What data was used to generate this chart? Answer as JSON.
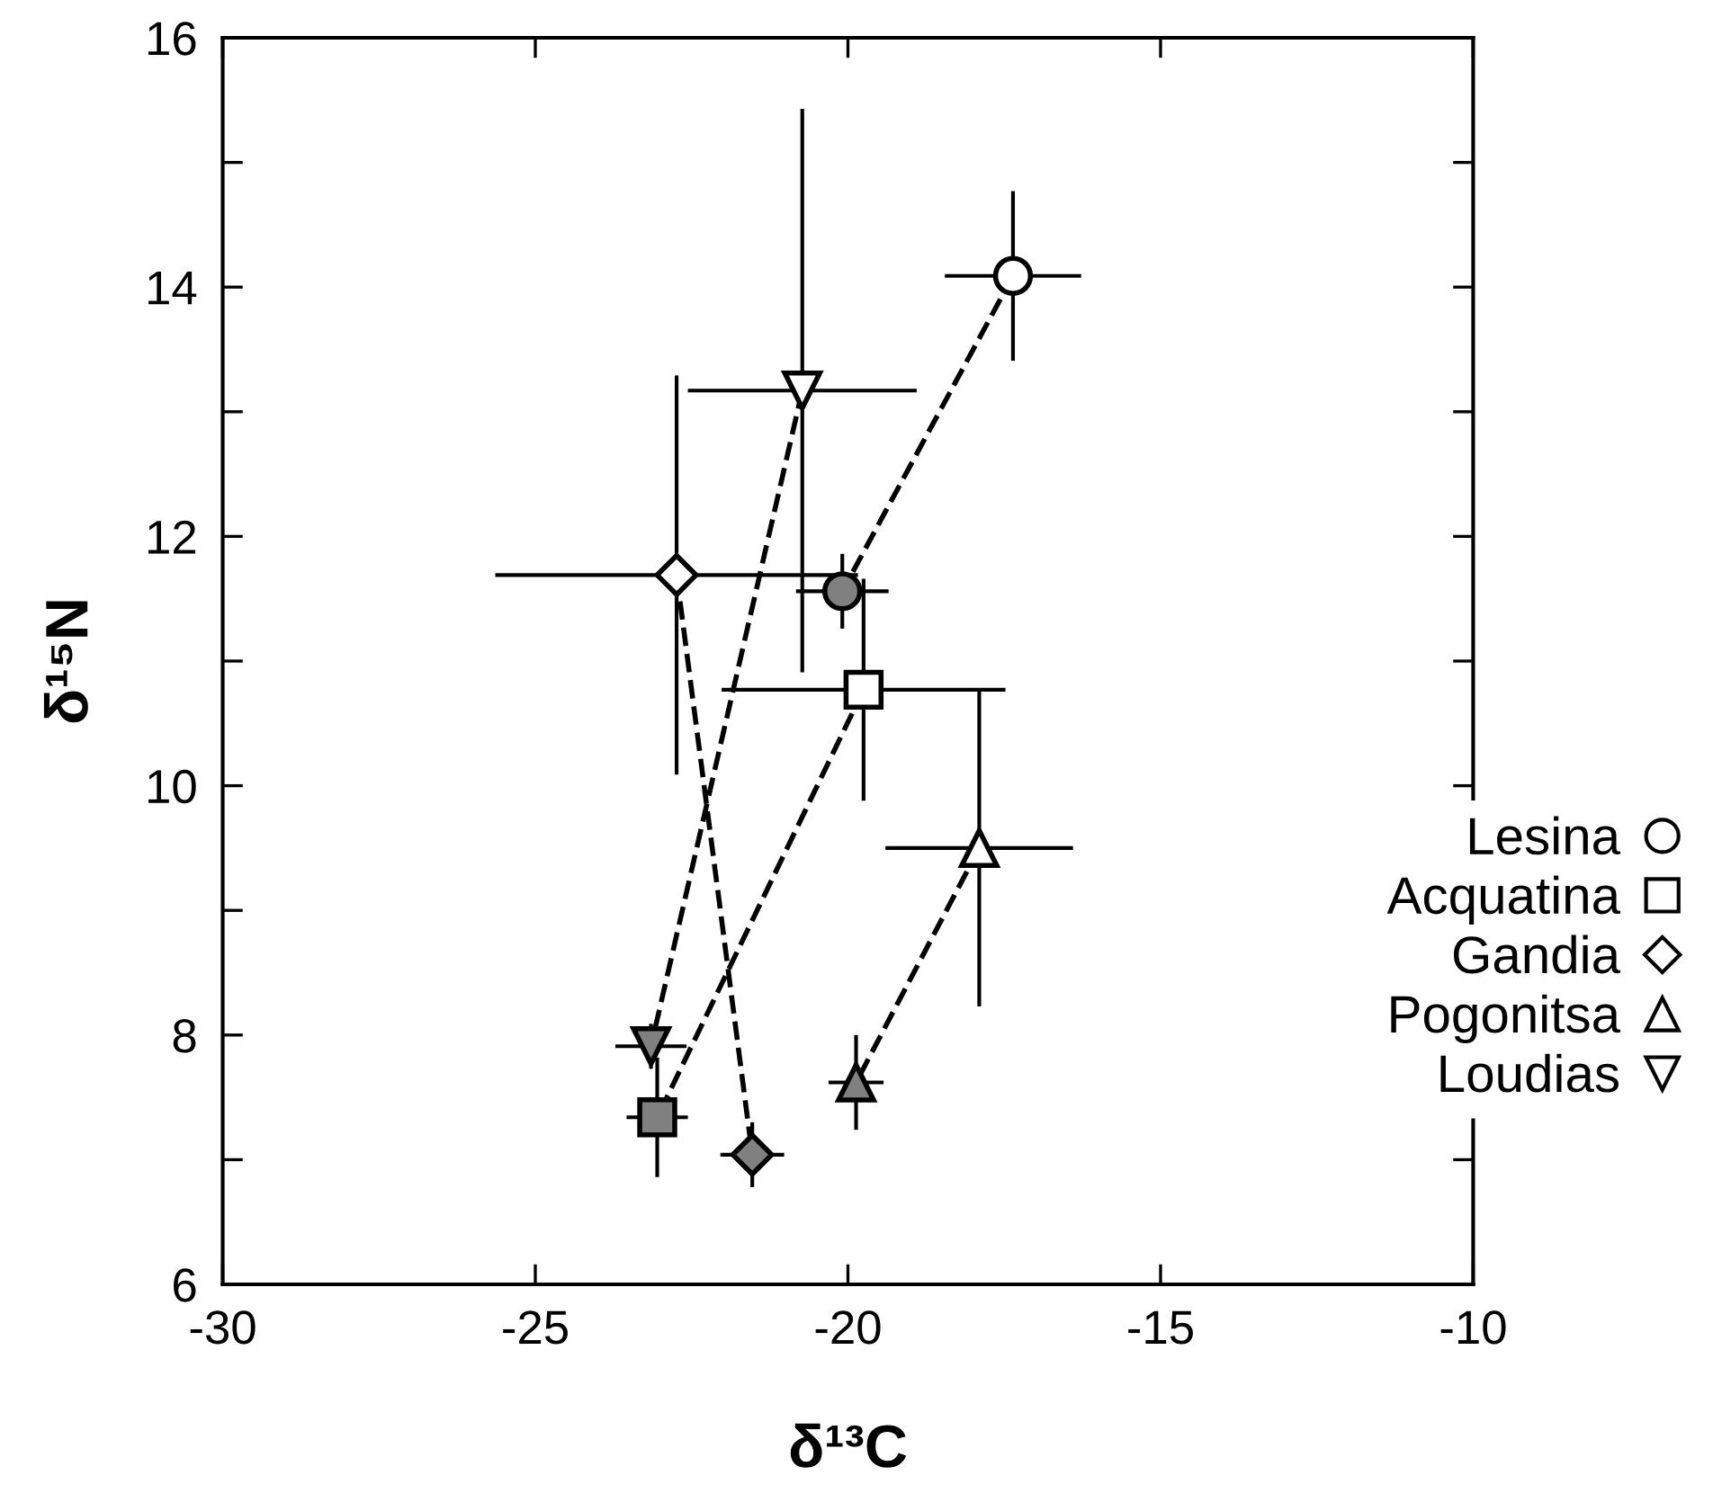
{
  "chart_data": {
    "type": "line",
    "xlabel": "δ¹³C",
    "ylabel": "δ¹⁵N",
    "xlim": [
      -30,
      -10
    ],
    "xticks": [
      -30,
      -25,
      -20,
      -15,
      -10
    ],
    "ylim": [
      6,
      16
    ],
    "yticks": [
      6,
      {
        "value": 7,
        "label": null
      },
      8,
      {
        "value": 9,
        "label": null
      },
      10,
      {
        "value": 11,
        "label": null
      },
      12,
      {
        "value": 13,
        "label": null
      },
      14,
      {
        "value": 15,
        "label": null
      },
      16
    ],
    "grid": false,
    "legend": "right",
    "line_style": "dashed",
    "series": [
      {
        "name": "Lesina",
        "marker": "circle",
        "color": "#000000",
        "colors": [
          "#ffffff",
          "#808080"
        ],
        "x": [
          -17.36,
          -20.09
        ],
        "values": [
          14.09,
          11.56
        ],
        "xerrors": [
          1.09,
          0.74
        ],
        "errors": [
          0.68,
          0.3
        ]
      },
      {
        "name": "Acquatina",
        "marker": "square",
        "color": "#000000",
        "colors": [
          "#ffffff",
          "#808080"
        ],
        "x": [
          -19.75,
          -23.05
        ],
        "values": [
          10.77,
          7.34
        ],
        "xerrors": [
          2.27,
          0.49
        ],
        "errors": [
          0.89,
          0.48
        ]
      },
      {
        "name": "Gandia",
        "marker": "diamond",
        "color": "#000000",
        "colors": [
          "#ffffff",
          "#808080"
        ],
        "x": [
          -22.74,
          -21.53
        ],
        "values": [
          11.69,
          7.04
        ],
        "xerrors": [
          2.9,
          0.51
        ],
        "errors": [
          1.6,
          0.26
        ]
      },
      {
        "name": "Pogonitsa",
        "marker": "triangle",
        "color": "#000000",
        "colors": [
          "#ffffff",
          "#808080"
        ],
        "x": [
          -17.9,
          -19.87
        ],
        "values": [
          9.5,
          7.62
        ],
        "xerrors": [
          1.5,
          0.44
        ],
        "errors": [
          1.27,
          0.38
        ]
      },
      {
        "name": "Loudias",
        "marker": "triangle_down",
        "color": "#000000",
        "colors": [
          "#ffffff",
          "#808080"
        ],
        "x": [
          -20.73,
          -23.15
        ],
        "values": [
          13.17,
          7.91
        ],
        "xerrors": [
          1.83,
          0.57
        ],
        "errors": [
          2.26,
          0.18
        ]
      }
    ]
  }
}
